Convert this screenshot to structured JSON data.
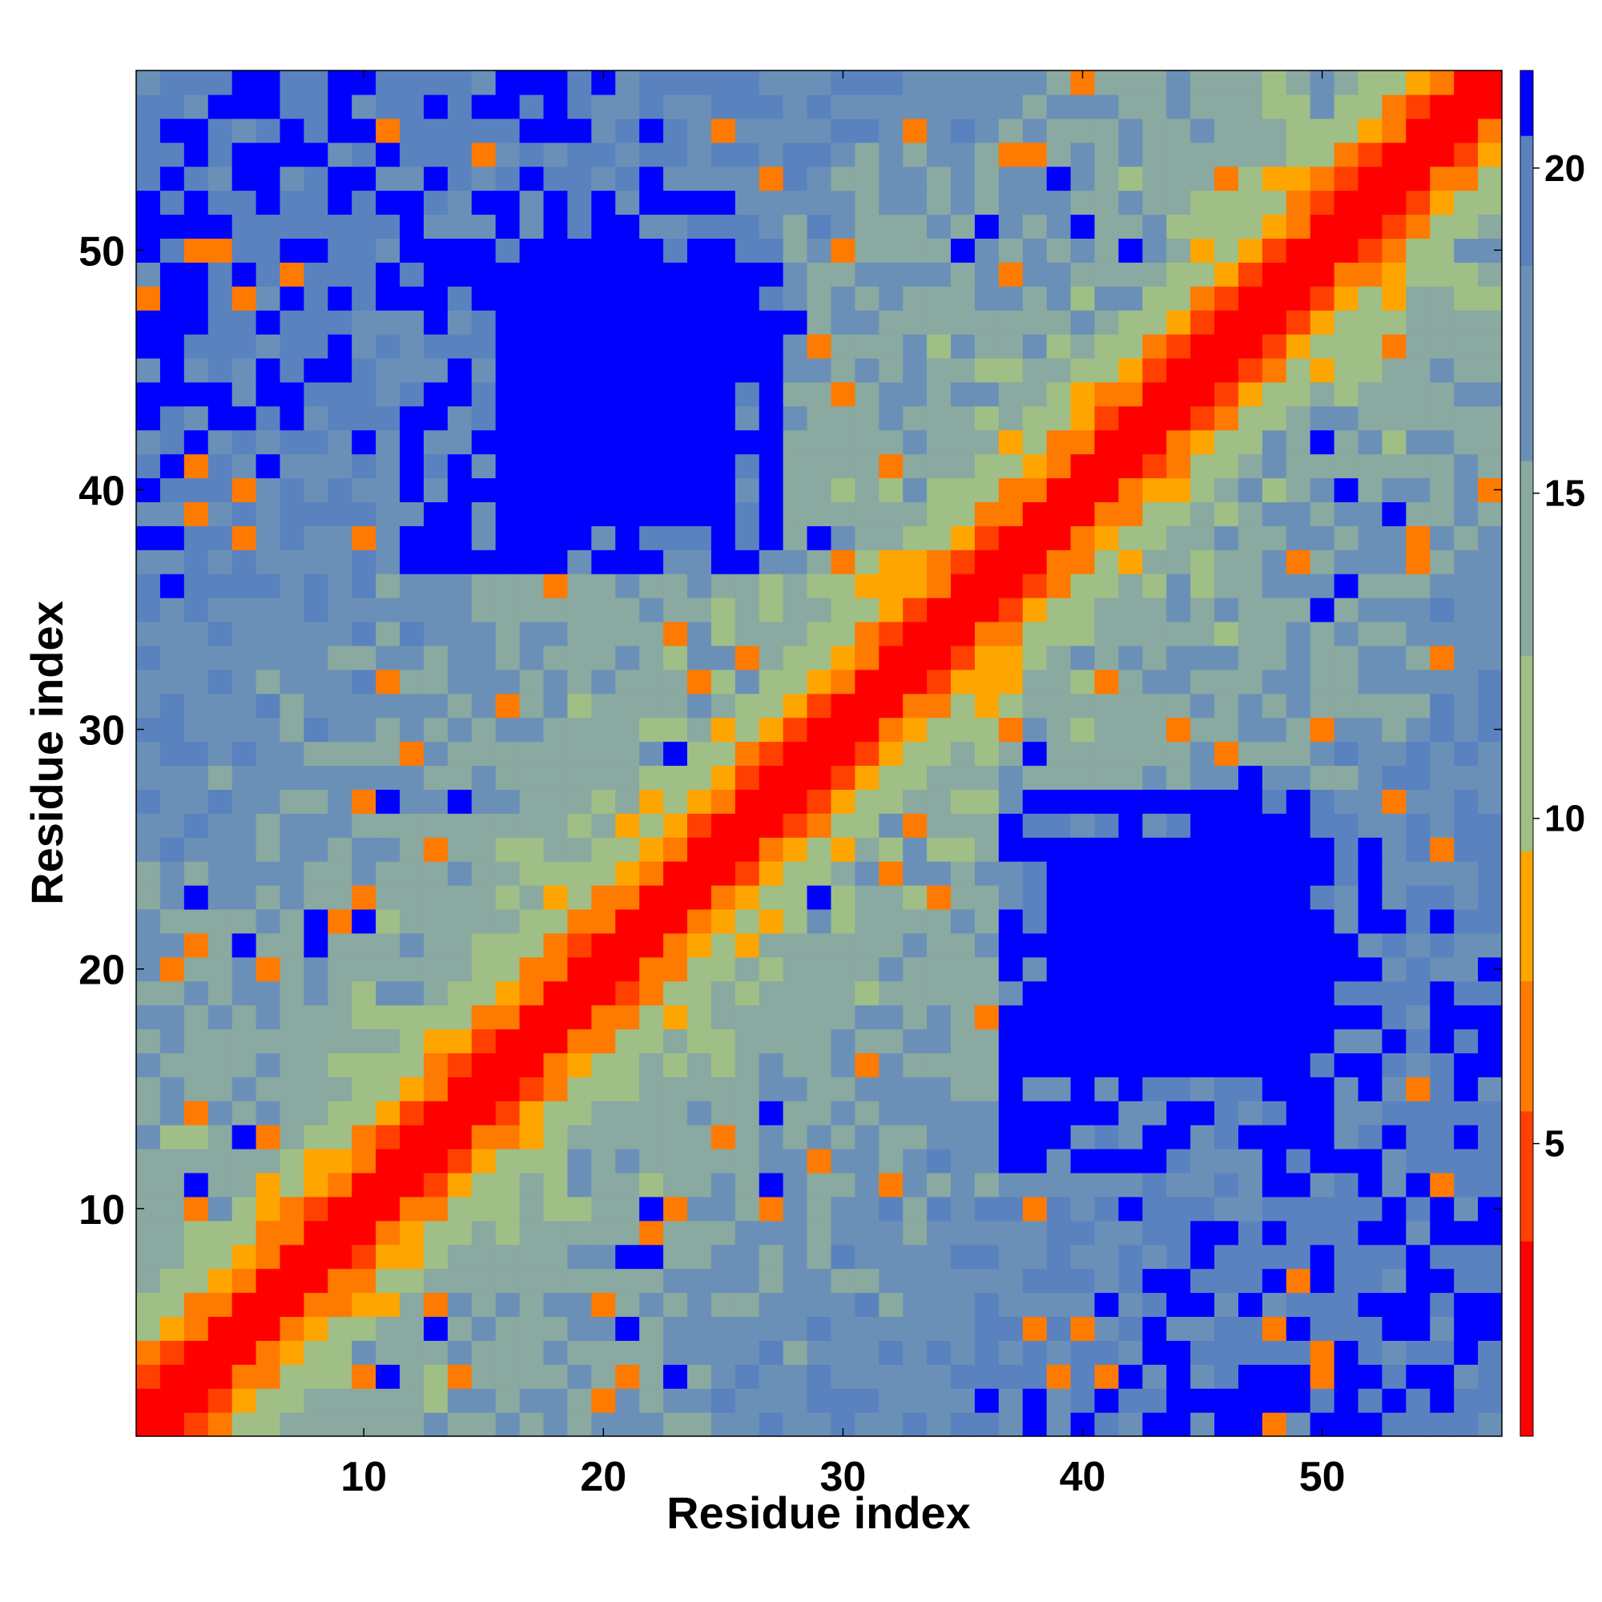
{
  "chart_data": {
    "type": "heatmap",
    "title": "",
    "xlabel": "Residue index",
    "ylabel": "Residue index",
    "n_residues": 57,
    "xlim": [
      1,
      57
    ],
    "ylim": [
      1,
      57
    ],
    "x_ticks": [
      10,
      20,
      30,
      40,
      50
    ],
    "y_ticks": [
      10,
      20,
      30,
      40,
      50
    ],
    "colorbar": {
      "range": [
        0.5,
        21.5
      ],
      "ticks": [
        5,
        10,
        15,
        20
      ],
      "colors": [
        "#ff0000",
        "#ff4000",
        "#ff7a00",
        "#ffa500",
        "#9fbf86",
        "#8aa9a0",
        "#6b90b7",
        "#5a82bf",
        "#0000ff"
      ],
      "boundaries": [
        0.5,
        3.5,
        5.5,
        7.5,
        9.5,
        12.5,
        15.5,
        18.5,
        20.5,
        21.5
      ]
    },
    "description_of_values": "Symmetric residue-residue distance matrix; contact diagonal (red) with two off-diagonal low-contact blocks (blue) near x≈20,y≈43 and x≈42,y≈20",
    "blue_blocks": [
      {
        "x_range": [
          14,
          27
        ],
        "y_range": [
          37,
          51
        ]
      },
      {
        "x_range": [
          37,
          52
        ],
        "y_range": [
          12,
          25
        ]
      }
    ]
  }
}
